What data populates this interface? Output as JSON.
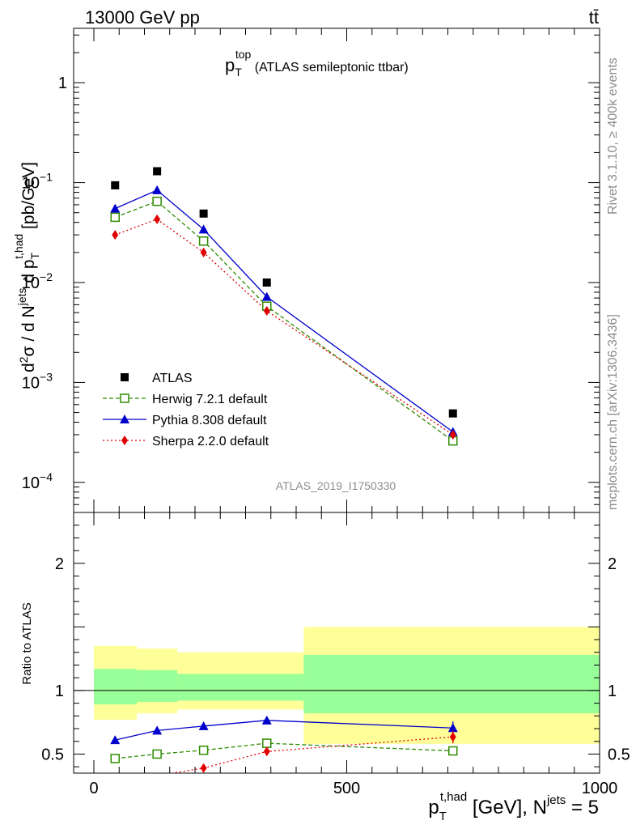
{
  "header": {
    "left": "13000 GeV pp",
    "right": "tt̄"
  },
  "side": {
    "top": "Rivet 3.1.10, ≥ 400k events",
    "bottom": "mcplots.cern.ch [arXiv:1306.3436]"
  },
  "chart_data": [
    {
      "type": "line",
      "title_main": "p",
      "title_sup": "top",
      "title_sub": "T",
      "title_rest": " (ATLAS semileptonic ttbar)",
      "ylabel": "d²σ / d N^jets d p_T^t,had [pb/GeV]",
      "yscale": "log",
      "ylim": [
        5e-05,
        3.5
      ],
      "xlim": [
        -40,
        1000
      ],
      "yticks": [
        {
          "v": 0.0001,
          "b": "10",
          "e": "−4"
        },
        {
          "v": 0.001,
          "b": "10",
          "e": "−3"
        },
        {
          "v": 0.01,
          "b": "10",
          "e": "−2"
        },
        {
          "v": 0.1,
          "b": "10",
          "e": "−1"
        },
        {
          "v": 1,
          "b": "1",
          "e": ""
        }
      ],
      "x": [
        42,
        125,
        217,
        342,
        710
      ],
      "watermark": "ATLAS_2019_I1750330",
      "series": [
        {
          "name": "ATLAS",
          "color": "#000000",
          "values": [
            0.094,
            0.13,
            0.049,
            0.01,
            0.00049
          ]
        },
        {
          "name": "Herwig 7.2.1 default",
          "color": "#2e8b00",
          "values": [
            0.045,
            0.065,
            0.026,
            0.0058,
            0.00026
          ]
        },
        {
          "name": "Pythia 8.308 default",
          "color": "#0000cc",
          "values": [
            0.055,
            0.084,
            0.034,
            0.0072,
            0.00032
          ]
        },
        {
          "name": "Sherpa 2.2.0 default",
          "color": "#e00000",
          "values": [
            0.03,
            0.043,
            0.02,
            0.0052,
            0.0003
          ]
        }
      ]
    },
    {
      "type": "line",
      "ylabel": "Ratio to ATLAS",
      "ylim": [
        0.35,
        2.4
      ],
      "xlim": [
        -40,
        1000
      ],
      "yticks": [
        {
          "v": 0.5,
          "t": "0.5"
        },
        {
          "v": 1,
          "t": "1"
        },
        {
          "v": 2,
          "t": "2"
        }
      ],
      "xticks": [
        {
          "v": 0,
          "t": "0"
        },
        {
          "v": 500,
          "t": "500"
        },
        {
          "v": 1000,
          "t": "1000"
        }
      ],
      "xlabel": {
        "p": "p",
        "sup": "t,had",
        "sub": "T",
        "rest": " [GeV], N",
        "sup2": "jets",
        "end": " = 5"
      },
      "x": [
        42,
        125,
        217,
        342,
        710
      ],
      "bands": [
        {
          "x0": 0,
          "x1": 85,
          "yellow": [
            0.77,
            1.35
          ],
          "green": [
            0.89,
            1.17
          ]
        },
        {
          "x0": 85,
          "x1": 165,
          "yellow": [
            0.82,
            1.33
          ],
          "green": [
            0.91,
            1.16
          ]
        },
        {
          "x0": 165,
          "x1": 415,
          "yellow": [
            0.85,
            1.3
          ],
          "green": [
            0.92,
            1.13
          ]
        },
        {
          "x0": 415,
          "x1": 1000,
          "yellow": [
            0.58,
            1.5
          ],
          "green": [
            0.82,
            1.28
          ]
        }
      ],
      "series": [
        {
          "name": "Herwig 7.2.1 default",
          "values": [
            0.465,
            0.5,
            0.53,
            0.585,
            0.525
          ]
        },
        {
          "name": "Pythia 8.308 default",
          "values": [
            0.61,
            0.685,
            0.72,
            0.765,
            0.705
          ]
        },
        {
          "name": "Sherpa 2.2.0 default",
          "values": [
            0.33,
            0.33,
            0.39,
            0.52,
            0.635
          ]
        }
      ]
    }
  ]
}
